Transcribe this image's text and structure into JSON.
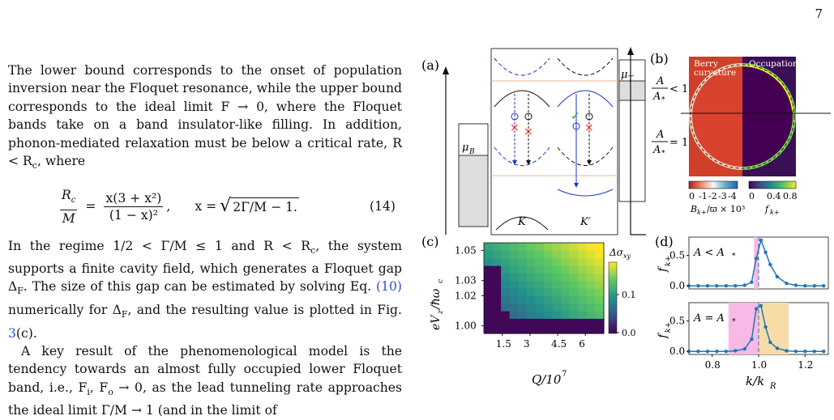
{
  "page_number": "7",
  "text": {
    "p1": "The lower bound corresponds to the onset of population inversion near the Floquet resonance, while the upper bound corresponds to the ideal limit F → 0, where the Floquet bands take on a band insulator-like filling. In addition, phonon-mediated relaxation must be below a critical rate, R < R",
    "p1_sub": "c",
    "p1_end": ", where",
    "eq_lhs_num": "R",
    "eq_lhs_num_sub": "c",
    "eq_lhs_den": "M",
    "eq_mid_num": "x(3 + x²)",
    "eq_mid_den": "(1 − x)²",
    "eq_comma": ",",
    "eq_x": "x = ",
    "eq_sqrt": "2Γ/M − 1.",
    "eq_number": "(14)",
    "p2a": "In the regime 1/2 < Γ/M ≤ 1 and R < R",
    "p2a_sub": "c",
    "p2b": ", the system supports a finite cavity field, which generates a Floquet gap Δ",
    "p2b_sub": "F",
    "p2c": ". The size of this gap can be estimated by solving Eq. ",
    "p2_ref1": "(10)",
    "p2d": " numerically for Δ",
    "p2d_sub": "F",
    "p2e": ", and the resulting value is plotted in Fig. ",
    "p2_ref2": "3",
    "p2f": "(c).",
    "p3": "A key result of the phenomenological model is the tendency towards an almost fully occupied lower Floquet band, i.e., F",
    "p3_sub1": "i",
    "p3b": ", F",
    "p3_sub2": "o",
    "p3c": " → 0, as the lead tunneling rate approaches the ideal limit Γ/M → 1 (and in the limit of"
  },
  "fig": {
    "a_label": "(a)",
    "b_label": "(b)",
    "c_label": "(c)",
    "d_label": "(d)",
    "muB": "μ",
    "muB_sub": "B",
    "muT": "μ",
    "muT_sub": "T",
    "K": "K",
    "Kp": "K′",
    "berry": "Berry",
    "curvature": "curvature",
    "occupation": "Occupation",
    "ratio_lt": "< 1",
    "ratio_eq": "= 1",
    "A": "A",
    "Astar": "A",
    "star_sub": "*",
    "cb_left_ticks": [
      "0",
      "-1",
      "-2",
      "-3",
      "-4"
    ],
    "cb_right_ticks": [
      "0",
      "0.4",
      "0.8"
    ],
    "cb_left_label": "B",
    "cb_left_label_rest": "/ϖ × 10³",
    "cb_right_label": "f",
    "kplus_sub": "k+",
    "c_ylabel": "eV",
    "c_ylabel_sub": "z",
    "c_ylabel_rest": "/ħω",
    "c_ylabel_sub2": "c",
    "c_xlabel": "Q/10",
    "c_xlabel_sup": "7",
    "c_cb_label": "Δσ",
    "c_cb_sub": "xy",
    "c_cb_ticks": [
      "0.1",
      "0.0"
    ],
    "d_top_legend": "A < A",
    "d_bot_legend": "A = A",
    "d_xlabel": "k/k",
    "d_xlabel_sub": "R",
    "d_ylabel": "f"
  },
  "chart_data": [
    {
      "type": "heatmap",
      "panel": "(c)",
      "x_ticks": [
        "1.5",
        "3",
        "4.5",
        "6"
      ],
      "y_ticks": [
        "1.00",
        "1.02",
        "1.03",
        "1.05"
      ],
      "xlim": [
        0.5,
        7
      ],
      "ylim": [
        0.995,
        1.055
      ],
      "colorbar_ticks": [
        "0.1",
        "0.0"
      ],
      "colormap": "viridis"
    },
    {
      "type": "line",
      "panel": "(d) top",
      "x_ticks": [
        "0.8",
        "1.0",
        "1.2"
      ],
      "y_ticks": [
        "0.0",
        "0.5"
      ],
      "xlim": [
        0.7,
        1.3
      ],
      "ylim": [
        -0.05,
        0.8
      ],
      "x": [
        0.7,
        0.74,
        0.78,
        0.82,
        0.86,
        0.9,
        0.94,
        0.97,
        0.99,
        1.01,
        1.03,
        1.05,
        1.08,
        1.12,
        1.16,
        1.2,
        1.24,
        1.28
      ],
      "y": [
        0.0,
        0.0,
        0.0,
        0.0,
        0.0,
        0.0,
        0.01,
        0.06,
        0.45,
        0.75,
        0.55,
        0.35,
        0.15,
        0.04,
        0.01,
        0.0,
        0.0,
        0.0
      ],
      "dashed_vline": 1.0,
      "shaded_color": "#f9b9e6"
    },
    {
      "type": "line",
      "panel": "(d) bottom",
      "x_ticks": [
        "0.8",
        "1.0",
        "1.2"
      ],
      "y_ticks": [
        "0.0",
        "0.5"
      ],
      "xlim": [
        0.7,
        1.3
      ],
      "ylim": [
        -0.05,
        0.8
      ],
      "x": [
        0.7,
        0.74,
        0.78,
        0.82,
        0.86,
        0.9,
        0.94,
        0.97,
        0.99,
        1.01,
        1.03,
        1.05,
        1.08,
        1.12,
        1.16,
        1.2,
        1.24,
        1.28
      ],
      "y": [
        0.0,
        0.0,
        0.0,
        0.0,
        0.0,
        0.01,
        0.04,
        0.2,
        0.7,
        0.75,
        0.4,
        0.15,
        0.05,
        0.01,
        0.0,
        0.0,
        0.0,
        0.0
      ],
      "shaded_pink": [
        0.87,
        1.0
      ],
      "shaded_orange": [
        1.0,
        1.13
      ]
    }
  ]
}
